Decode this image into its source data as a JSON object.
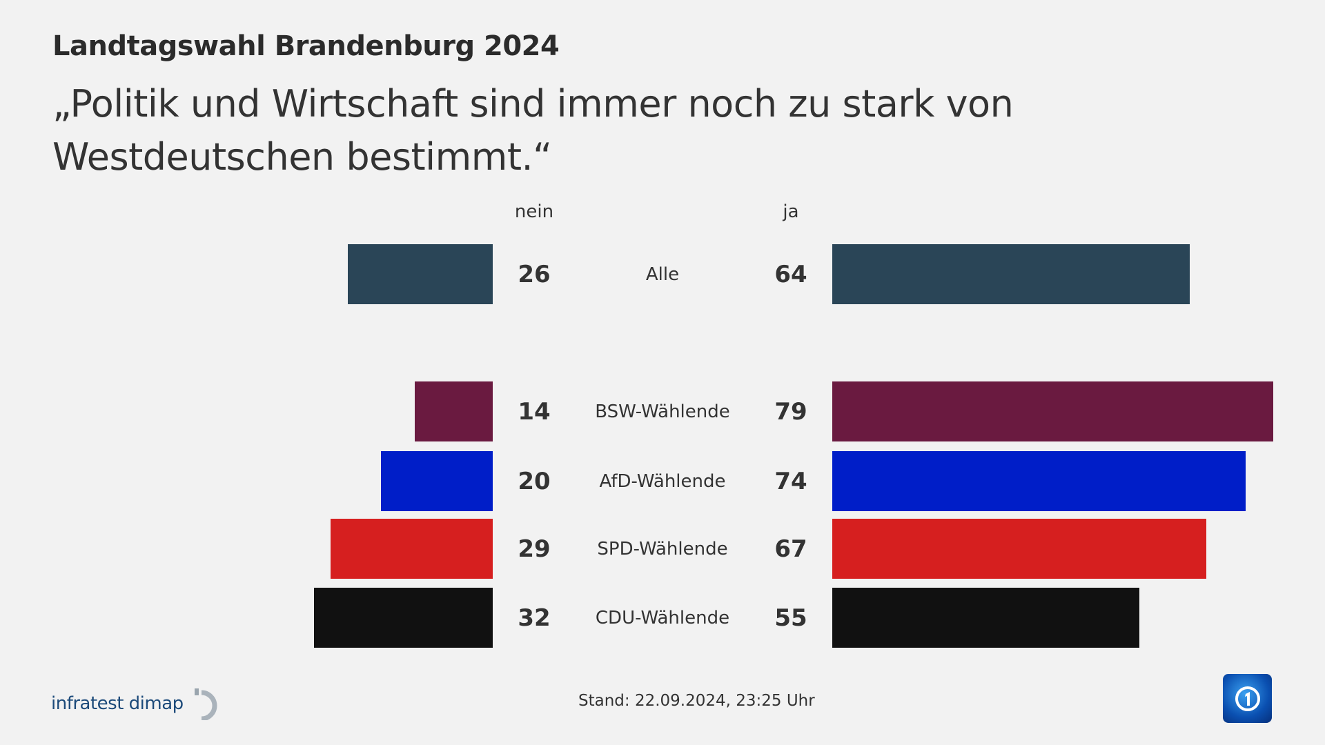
{
  "header": {
    "title": "Landtagswahl Brandenburg 2024",
    "subtitle": "„Politik und Wirtschaft sind immer noch zu stark von Westdeutschen bestimmt.“"
  },
  "chart_data": {
    "type": "bar",
    "orientation": "horizontal-diverging",
    "categories": [
      "Alle",
      "BSW-Wählende",
      "AfD-Wählende",
      "SPD-Wählende",
      "CDU-Wählende"
    ],
    "series": [
      {
        "name": "nein",
        "values": [
          26,
          14,
          20,
          29,
          32
        ]
      },
      {
        "name": "ja",
        "values": [
          64,
          79,
          74,
          67,
          55
        ]
      }
    ],
    "colors": [
      "#2a4557",
      "#6a1a40",
      "#001ec8",
      "#d61f1f",
      "#111111"
    ],
    "grid": false
  },
  "footer": {
    "stand": "Stand:  22.09.2024, 23:25 Uhr",
    "source_logo": "infratest dimap",
    "broadcaster_logo": "ARD Das Erste"
  }
}
